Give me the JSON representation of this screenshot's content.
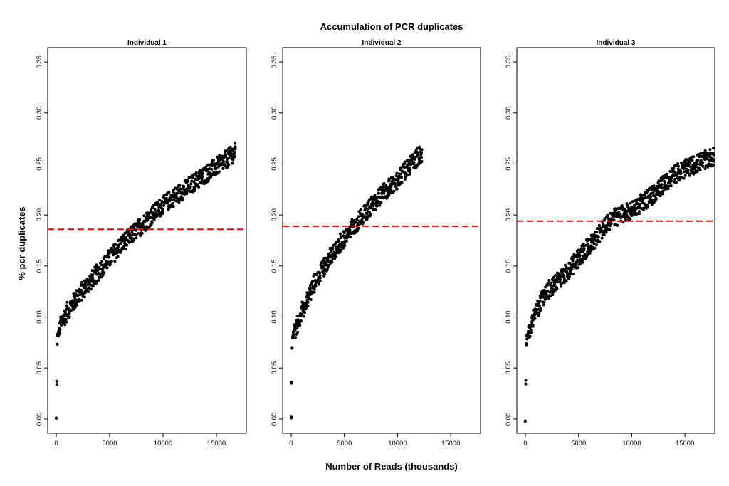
{
  "figure": {
    "title": "Accumulation of PCR duplicates",
    "xlabel": "Number of Reads (thousands)",
    "ylabel": "% pcr duplicates"
  },
  "colors": {
    "points": "#000000",
    "reference_line": "#ff0000",
    "frame": "#000000"
  },
  "chart_data": [
    {
      "type": "scatter",
      "title": "Individual 1",
      "xlim": [
        -800,
        17800
      ],
      "ylim": [
        -0.014,
        0.364
      ],
      "xticks": [
        0,
        5000,
        10000,
        15000
      ],
      "xtick_labels": [
        "0",
        "5000",
        "10000",
        "15000"
      ],
      "yticks": [
        0.0,
        0.05,
        0.1,
        0.15,
        0.2,
        0.25,
        0.3,
        0.35
      ],
      "ytick_labels": [
        "0.00",
        "0.05",
        "0.10",
        "0.15",
        "0.20",
        "0.25",
        "0.30",
        "0.35"
      ],
      "hline": 0.186,
      "x_max": 16800,
      "trend": [
        [
          0,
          0.0
        ],
        [
          100,
          0.08
        ],
        [
          500,
          0.095
        ],
        [
          1000,
          0.105
        ],
        [
          2000,
          0.12
        ],
        [
          4000,
          0.145
        ],
        [
          6000,
          0.17
        ],
        [
          8000,
          0.19
        ],
        [
          10000,
          0.21
        ],
        [
          12000,
          0.225
        ],
        [
          14000,
          0.24
        ],
        [
          16000,
          0.255
        ],
        [
          16800,
          0.262
        ]
      ]
    },
    {
      "type": "scatter",
      "title": "Individual 2",
      "xlim": [
        -800,
        17800
      ],
      "ylim": [
        -0.014,
        0.364
      ],
      "xticks": [
        0,
        5000,
        10000,
        15000
      ],
      "xtick_labels": [
        "0",
        "5000",
        "10000",
        "15000"
      ],
      "yticks": [
        0.0,
        0.05,
        0.1,
        0.15,
        0.2,
        0.25,
        0.3,
        0.35
      ],
      "ytick_labels": [
        "0.00",
        "0.05",
        "0.10",
        "0.15",
        "0.20",
        "0.25",
        "0.30",
        "0.35"
      ],
      "hline": 0.189,
      "x_max": 12300,
      "trend": [
        [
          0,
          0.0
        ],
        [
          100,
          0.08
        ],
        [
          500,
          0.09
        ],
        [
          1000,
          0.105
        ],
        [
          2000,
          0.13
        ],
        [
          4000,
          0.165
        ],
        [
          6000,
          0.19
        ],
        [
          8000,
          0.215
        ],
        [
          10000,
          0.235
        ],
        [
          12000,
          0.258
        ],
        [
          12300,
          0.26
        ]
      ]
    },
    {
      "type": "scatter",
      "title": "Individual 3",
      "xlim": [
        -800,
        17800
      ],
      "ylim": [
        -0.014,
        0.364
      ],
      "xticks": [
        0,
        5000,
        10000,
        15000
      ],
      "xtick_labels": [
        "0",
        "5000",
        "10000",
        "15000"
      ],
      "yticks": [
        0.0,
        0.05,
        0.1,
        0.15,
        0.2,
        0.25,
        0.3,
        0.35
      ],
      "ytick_labels": [
        "0.00",
        "0.05",
        "0.10",
        "0.15",
        "0.20",
        "0.25",
        "0.30",
        "0.35"
      ],
      "hline": 0.194,
      "x_max": 17800,
      "trend": [
        [
          0,
          0.0
        ],
        [
          100,
          0.08
        ],
        [
          500,
          0.09
        ],
        [
          1000,
          0.105
        ],
        [
          2000,
          0.125
        ],
        [
          4000,
          0.145
        ],
        [
          6000,
          0.17
        ],
        [
          8000,
          0.195
        ],
        [
          10000,
          0.205
        ],
        [
          12000,
          0.22
        ],
        [
          14000,
          0.24
        ],
        [
          16000,
          0.25
        ],
        [
          17800,
          0.258
        ]
      ]
    }
  ]
}
